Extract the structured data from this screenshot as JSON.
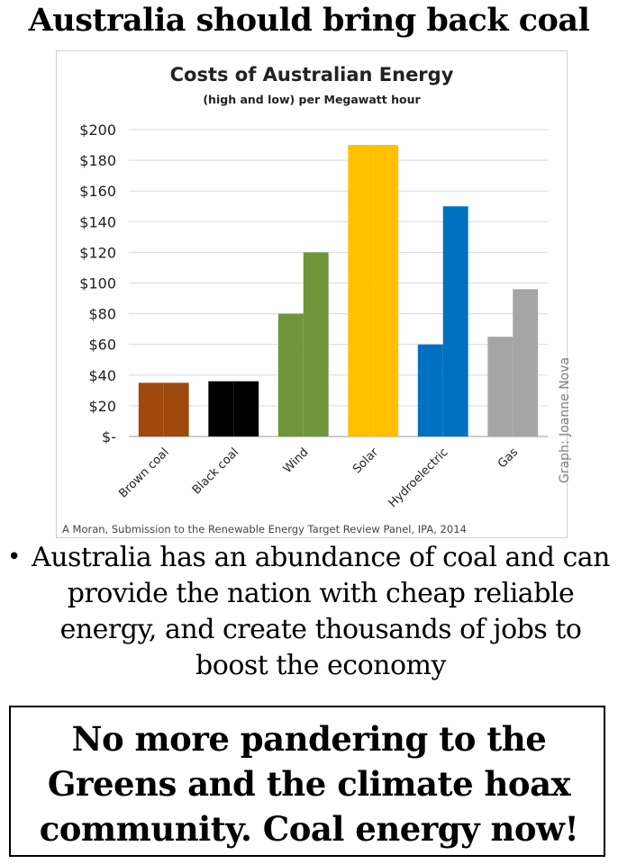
{
  "headline": "Australia should  bring back coal",
  "chart_data": {
    "type": "bar",
    "title": "Costs of Australian Energy",
    "subtitle": "(high and low) per Megawatt hour",
    "categories": [
      "Brown coal",
      "Black coal",
      "Wind",
      "Solar",
      "Hydroelectric",
      "Gas"
    ],
    "series": [
      {
        "values": [
          35,
          36,
          80,
          190,
          60,
          65
        ]
      },
      {
        "values": [
          35,
          36,
          120,
          190,
          150,
          96
        ]
      }
    ],
    "colors": [
      "#9E480E",
      "#000000",
      "#70943A",
      "#FFC000",
      "#0070C0",
      "#A5A5A5"
    ],
    "yticks": [
      "$-",
      "$20",
      "$40",
      "$60",
      "$80",
      "$100",
      "$120",
      "$140",
      "$160",
      "$180",
      "$200"
    ],
    "ylim": [
      0,
      200
    ],
    "grid": true,
    "watermark": "Graph: Joanne Nova",
    "source": "A Moran, Submission to the Renewable Energy Target Review Panel, IPA, 2014"
  },
  "bullet": {
    "symbol": "•",
    "text": "Australia has an abundance of coal and can provide the nation with cheap reliable energy, and create thousands of jobs to boost the economy"
  },
  "callout": {
    "text": "No more pandering to the Greens and the climate hoax community. Coal energy now!"
  }
}
